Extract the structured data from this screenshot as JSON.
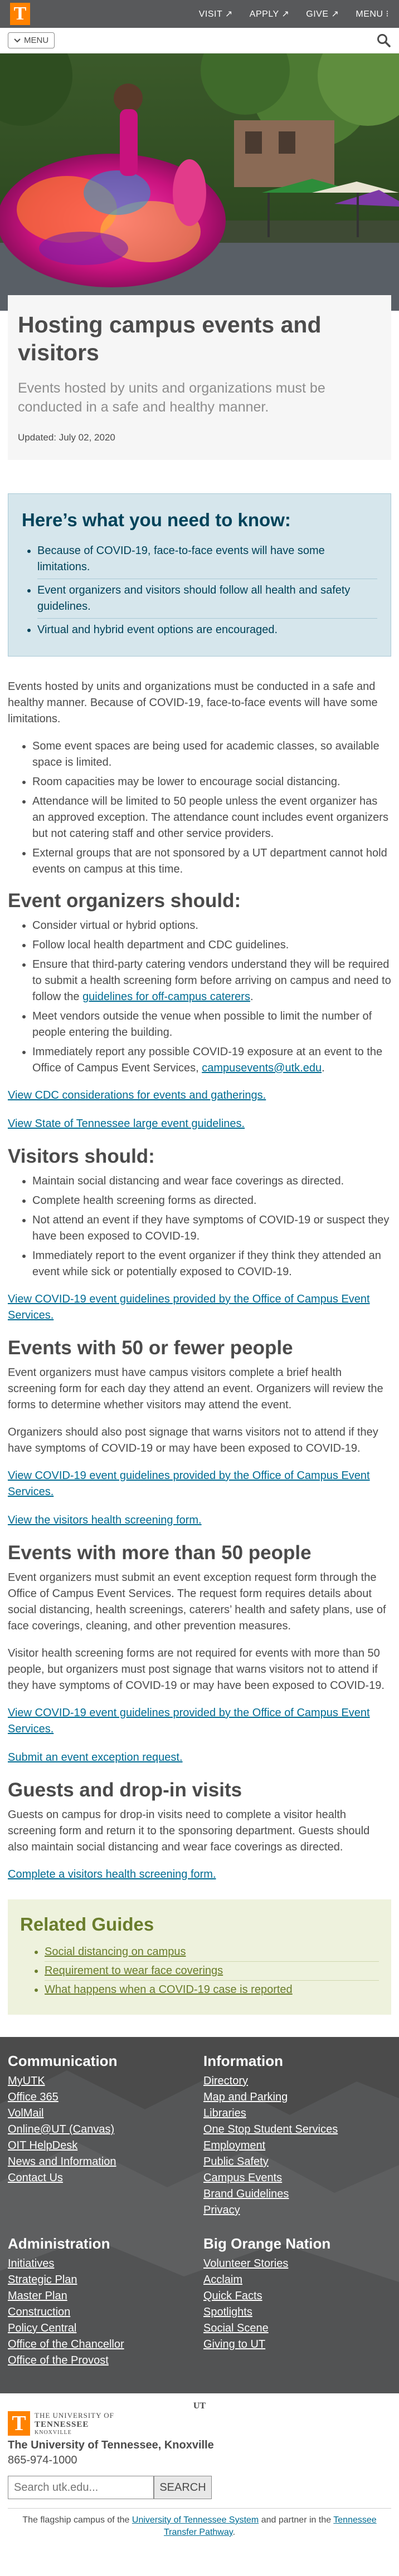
{
  "header": {
    "logo": "T",
    "links": [
      {
        "label": "VISIT ↗"
      },
      {
        "label": "APPLY ↗"
      },
      {
        "label": "GIVE ↗"
      },
      {
        "label": "MENU ⁝"
      }
    ],
    "menu_button": "MENU",
    "icons": {
      "menu": "chevron-down-icon",
      "search": "search-icon"
    }
  },
  "page": {
    "title": "Hosting campus events and visitors",
    "intro": "Events hosted by units and organizations must be conducted in a safe and healthy manner.",
    "updated": "Updated: July 02, 2020"
  },
  "know": {
    "heading": "Here’s what you need to know:",
    "items": [
      "Because of COVID-19, face-to-face events will have some limitations.",
      "Event organizers and visitors should follow all health and safety guidelines.",
      "Virtual and hybrid event options are encouraged."
    ]
  },
  "body": {
    "p1": "Events hosted by units and organizations must be conducted in a safe and healthy manner. Because of COVID-19, face-to-face events will have some limitations.",
    "list1": [
      "Some event spaces are being used for academic classes, so available space is limited.",
      "Room capacities may be lower to encourage social distancing.",
      "Attendance will be limited to 50 people unless the event organizer has an approved exception. The attendance count includes event organizers but not catering staff and other service providers.",
      "External groups that are not sponsored by a UT department cannot hold events on campus at this time."
    ],
    "h_organizers": "Event organizers should:",
    "org_list": {
      "i1": "Consider virtual or hybrid options.",
      "i2": "Follow local health department and CDC guidelines.",
      "i3_pre": "Ensure that third-party catering vendors understand they will be required to submit a health screening form before arriving on campus and need to follow the ",
      "i3_link": "guidelines for off-campus caterers",
      "i3_post": ".",
      "i4": "Meet vendors outside the venue when possible to limit the number of people entering the building.",
      "i5_pre": "Immediately report any possible COVID-19 exposure at an event to the Office of Campus Event Services, ",
      "i5_link": "campusevents@utk.edu",
      "i5_post": "."
    },
    "link_cdc": "View CDC considerations for events and gatherings.",
    "link_state": "View State of Tennessee large event guidelines.",
    "h_visitors": "Visitors should:",
    "visitors_list": [
      "Maintain social distancing and wear face coverings as directed.",
      "Complete health screening forms as directed.",
      "Not attend an event if they have symptoms of COVID-19 or suspect they have been exposed to COVID-19.",
      "Immediately report to the event organizer if they think they attended an event while sick or potentially exposed to COVID-19."
    ],
    "link_guidelines_1": "View COVID-19 event guidelines provided by the Office of Campus Event Services.",
    "h_50fewer": "Events with 50 or fewer people",
    "p_50fewer_1": "Event organizers must have campus visitors complete a brief health screening form for each day they attend an event. Organizers will review the forms to determine whether visitors may attend the event.",
    "p_50fewer_2": "Organizers should also post signage that warns visitors not to attend if they have symptoms of COVID-19 or may have been exposed to COVID-19.",
    "link_guidelines_2": "View COVID-19 event guidelines provided by the Office of Campus Event Services.",
    "link_visitor_form": "View the visitors health screening form.",
    "h_50more": "Events with more than 50 people",
    "p_50more_1": "Event organizers must submit an event exception request form through the Office of Campus Event Services. The request form requires details about social distancing, health screenings, caterers’ health and safety plans, use of face coverings, cleaning, and other prevention measures.",
    "p_50more_2": "Visitor health screening forms are not required for events with more than 50 people, but organizers must post signage that warns visitors not to attend if they have symptoms of COVID-19 or may have been exposed to COVID-19.",
    "link_guidelines_3": "View COVID-19 event guidelines provided by the Office of Campus Event Services.",
    "link_exception": "Submit an event exception request.",
    "h_guests": "Guests and drop-in visits",
    "p_guests": "Guests on campus for drop-in visits need to complete a visitor health screening form and return it to the sponsoring department. Guests should also maintain social distancing and wear face coverings as directed.",
    "link_complete_form": "Complete a visitors health screening form."
  },
  "related": {
    "heading": "Related Guides",
    "items": [
      "Social distancing on campus",
      "Requirement to wear face coverings",
      "What happens when a COVID-19 case is reported"
    ]
  },
  "footer": {
    "communication": {
      "heading": "Communication",
      "links": [
        "MyUTK",
        "Office 365",
        "VolMail",
        "Online@UT (Canvas)",
        "OIT HelpDesk",
        "News and Information",
        "Contact Us"
      ]
    },
    "information": {
      "heading": "Information",
      "links": [
        "Directory",
        "Map and Parking",
        "Libraries",
        "One Stop Student Services",
        "Employment",
        "Public Safety",
        "Campus Events",
        "Brand Guidelines",
        "Privacy"
      ]
    },
    "administration": {
      "heading": "Administration",
      "links": [
        "Initiatives",
        "Strategic Plan",
        "Master Plan",
        "Construction",
        "Policy Central",
        "Office of the Chancellor",
        "Office of the Provost"
      ]
    },
    "big_orange": {
      "heading": "Big Orange Nation",
      "links": [
        "Volunteer Stories",
        "Acclaim",
        "Quick Facts",
        "Spotlights",
        "Social Scene",
        "Giving to UT"
      ]
    }
  },
  "bottom": {
    "mini_logo": "UT",
    "wordmark": {
      "l1": "THE UNIVERSITY OF",
      "l2": "TENNESSEE",
      "l3": "KNOXVILLE"
    },
    "name": "The University of Tennessee, Knoxville",
    "phone": "865-974-1000",
    "search_placeholder": "Search utk.edu...",
    "search_button": "SEARCH",
    "flagship_pre": "The flagship campus of the ",
    "flagship_link1": "University of Tennessee System",
    "flagship_mid": " and partner in the ",
    "flagship_link2": "Tennessee Transfer Pathway",
    "flagship_post": "."
  },
  "colors": {
    "orange": "#ff8200",
    "smokey": "#58595b",
    "link": "#006c93",
    "know_bg": "#d6e6ec",
    "related_bg": "#eef2dd"
  }
}
